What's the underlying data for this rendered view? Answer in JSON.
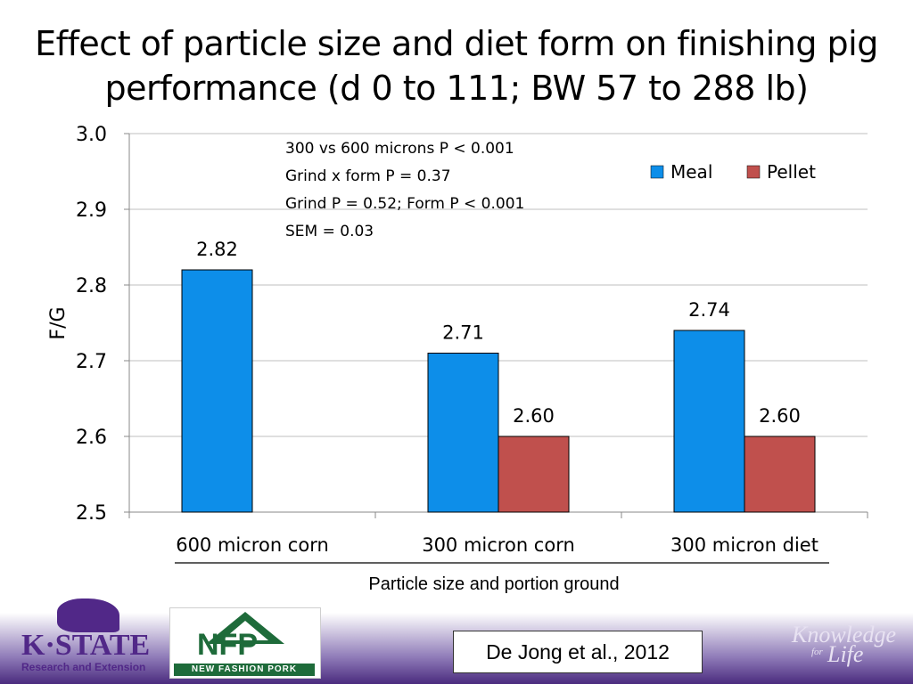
{
  "title": "Effect of particle size and diet form on finishing pig performance (d 0 to 111; BW 57 to 288 lb)",
  "colors": {
    "meal": "#0d8ee9",
    "pellet": "#c0504d",
    "grid": "#bfbfbf"
  },
  "chart_data": {
    "type": "bar",
    "categories": [
      "600 micron corn",
      "300 micron corn",
      "300 micron diet"
    ],
    "series": [
      {
        "name": "Meal",
        "values": [
          2.82,
          2.71,
          2.74
        ]
      },
      {
        "name": "Pellet",
        "values": [
          null,
          2.6,
          2.6
        ]
      }
    ],
    "data_labels": [
      [
        "2.82",
        "2.71",
        "2.74"
      ],
      [
        "",
        "2.60",
        "2.60"
      ]
    ],
    "ylabel": "F/G",
    "xlabel": "Particle size and portion ground",
    "ylim": [
      2.5,
      3.0
    ],
    "yticks": [
      "2.5",
      "2.6",
      "2.7",
      "2.8",
      "2.9",
      "3.0"
    ],
    "legend_position": "top-right",
    "grid": true,
    "annotations": [
      "300 vs 600 microns P < 0.001",
      "Grind x form P = 0.37",
      "Grind P = 0.52; Form P < 0.001",
      "SEM = 0.03"
    ]
  },
  "footer": {
    "kstate_name": "K·STATE",
    "kstate_sub": "Research and Extension",
    "nfp_letters": "NFP",
    "nfp_name": "NEW FASHION PORK",
    "citation": "De Jong et al., 2012",
    "tagline_1": "Knowledge",
    "tagline_2": "for",
    "tagline_3": "Life"
  }
}
